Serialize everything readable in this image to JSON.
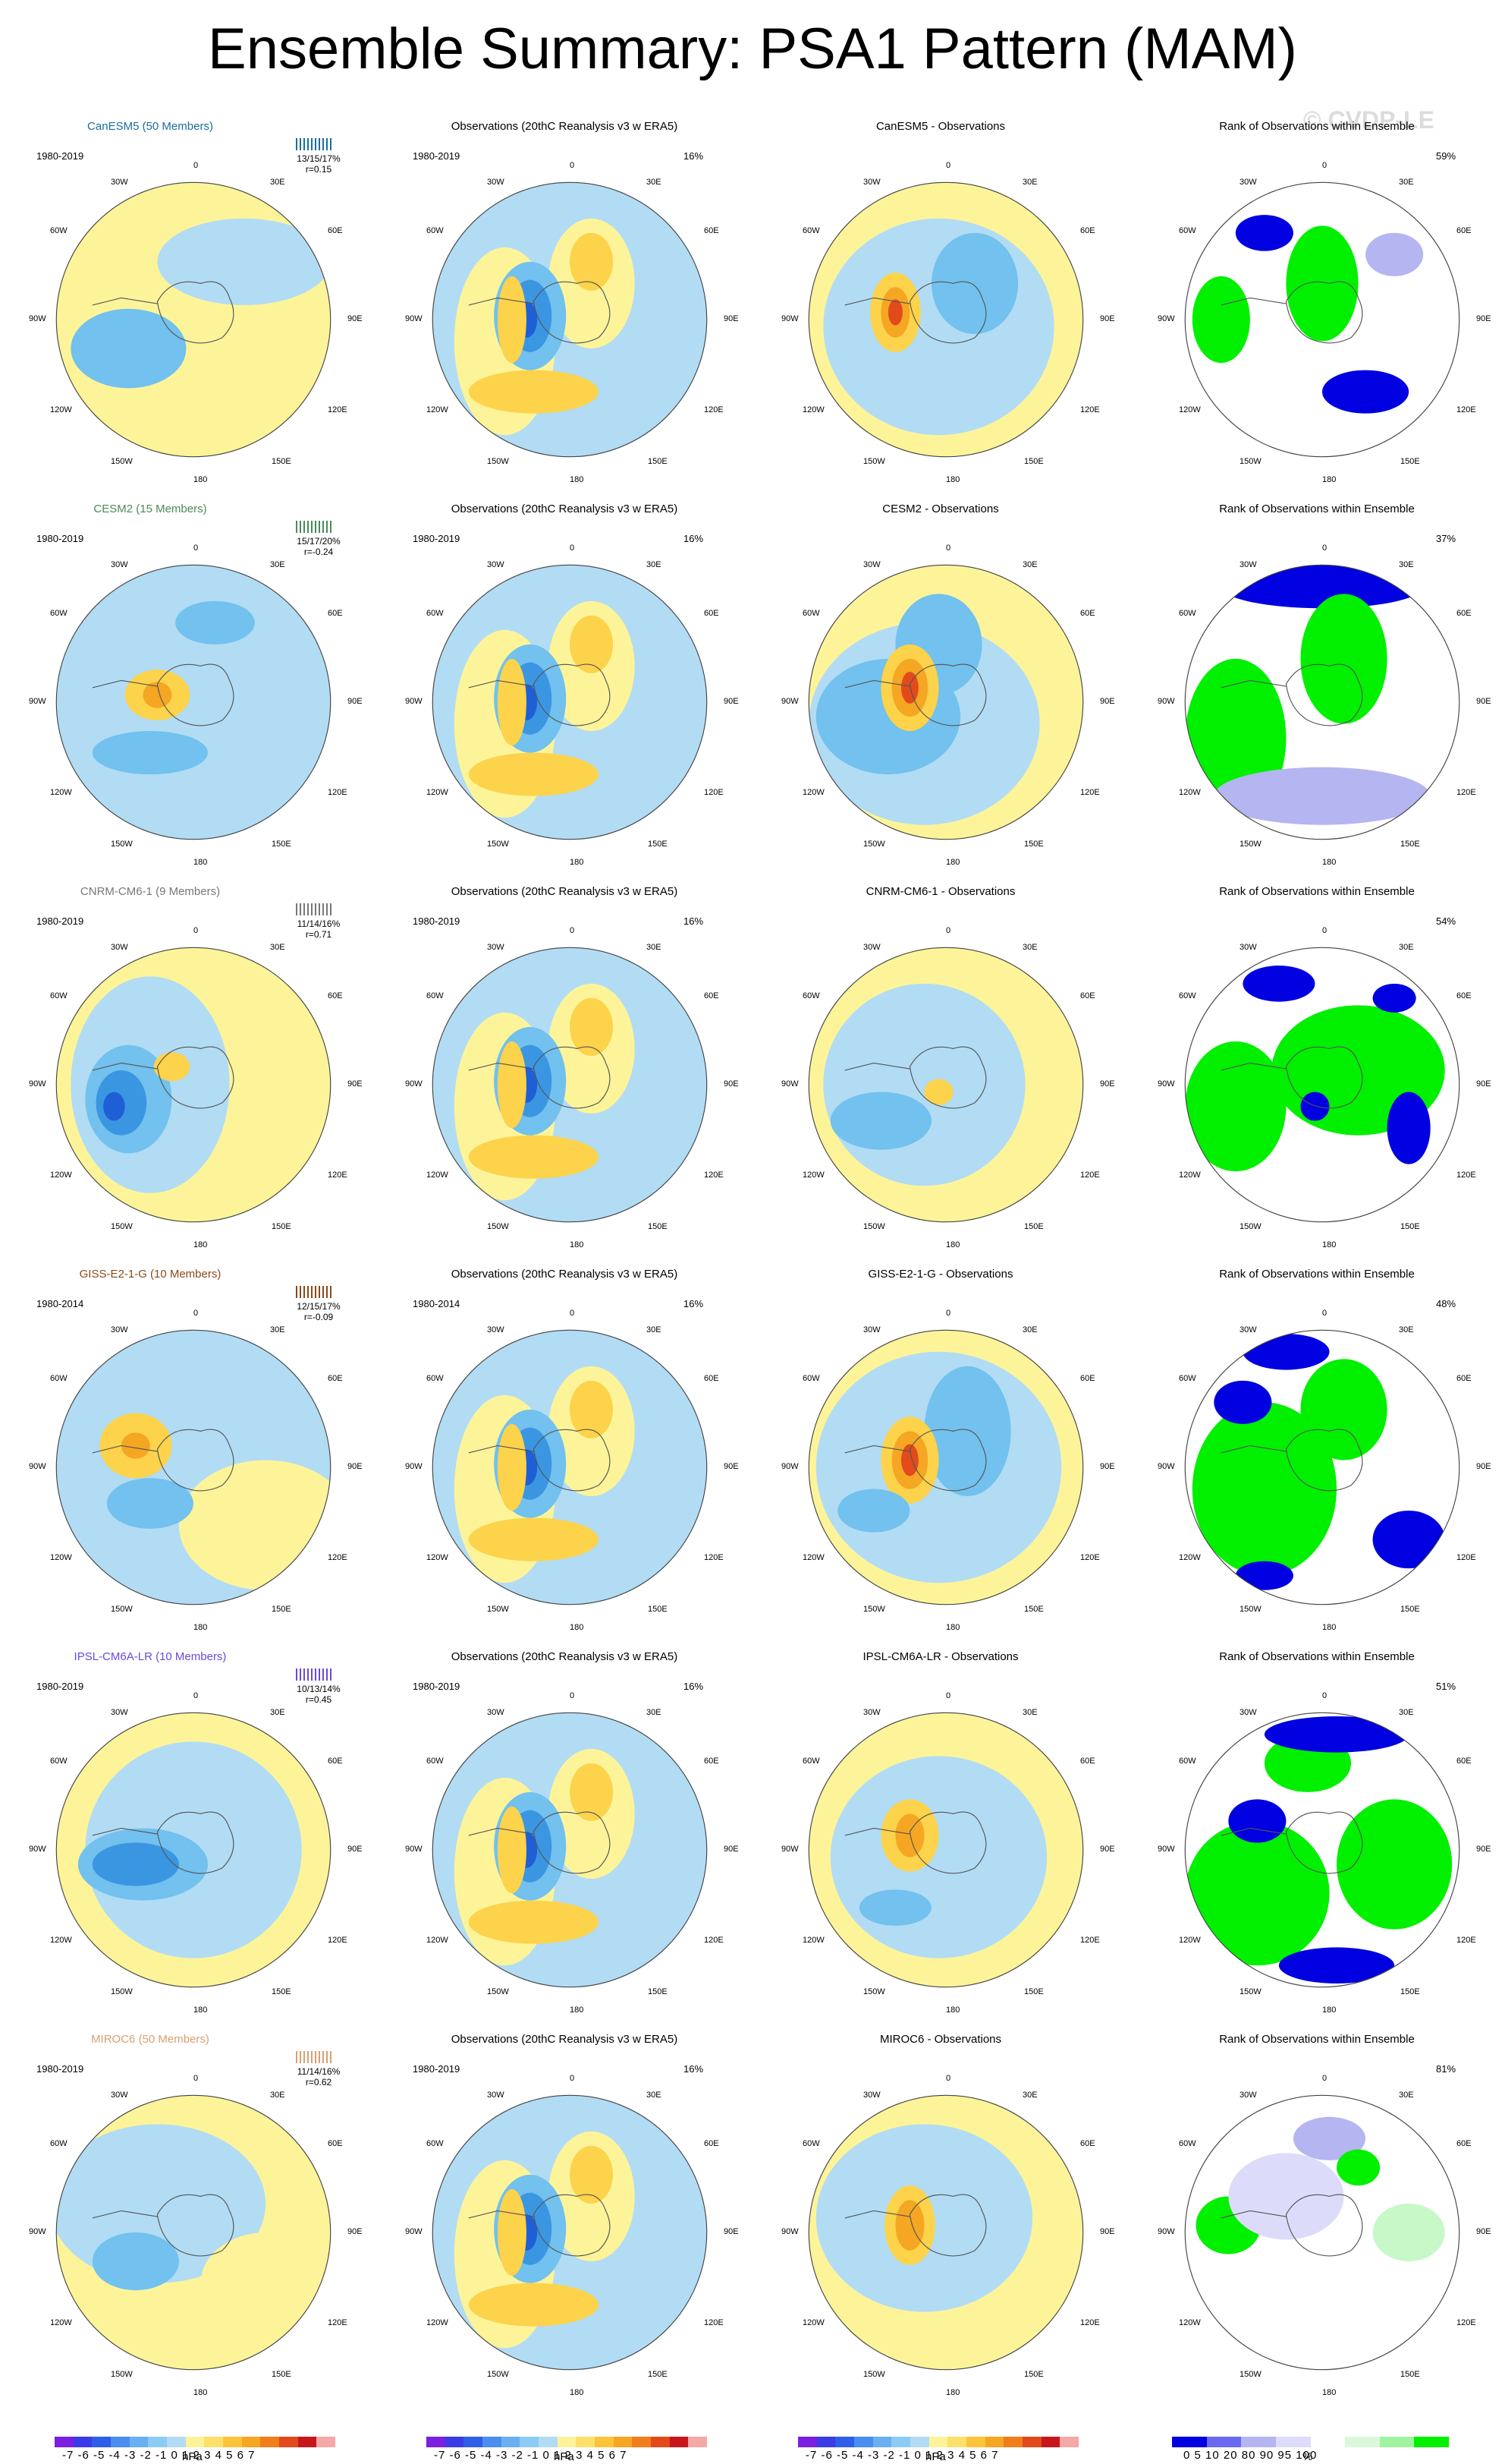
{
  "title": "Ensemble Summary: PSA1 Pattern (MAM)",
  "watermark": "© CVDP-LE",
  "obs_title": "Observations (20thC Reanalysis v3 w ERA5)",
  "rank_title": "Rank of Observations within Ensemble",
  "obs_pct": "16%",
  "lon_labels": [
    "0",
    "30E",
    "60E",
    "90E",
    "120E",
    "150E",
    "180",
    "150W",
    "120W",
    "90W",
    "60W",
    "30W"
  ],
  "colors": {
    "yellow": "#fdf49a",
    "lightblue": "#b2dcf4",
    "midblue": "#72c1ee",
    "blue": "#3b96e2",
    "darkblue": "#1f5fd6",
    "orange_light": "#fcd34a",
    "orange": "#f5a623",
    "red": "#e24a1c",
    "darkred": "#c8161d",
    "rank_blue": "#0000e0",
    "rank_lav": "#b5b5f2",
    "rank_lav2": "#dcdcfa",
    "rank_green": "#00f000",
    "rank_lightgreen": "#c8f8c8"
  },
  "rows": [
    {
      "model": "CanESM5 (50 Members)",
      "model_color": "#1a6e9e",
      "years": "1980-2019",
      "stats": "13/15/17%",
      "r": "r=0.15",
      "diff_title": "CanESM5 - Observations",
      "rank_pct": "59%"
    },
    {
      "model": "CESM2 (15 Members)",
      "model_color": "#4a8a5a",
      "years": "1980-2019",
      "stats": "15/17/20%",
      "r": "r=-0.24",
      "diff_title": "CESM2 - Observations",
      "rank_pct": "37%"
    },
    {
      "model": "CNRM-CM6-1 (9 Members)",
      "model_color": "#777777",
      "years": "1980-2019",
      "stats": "11/14/16%",
      "r": "r=0.71",
      "diff_title": "CNRM-CM6-1 - Observations",
      "rank_pct": "54%"
    },
    {
      "model": "GISS-E2-1-G (10 Members)",
      "model_color": "#8a4a1a",
      "years": "1980-2014",
      "stats": "12/15/17%",
      "r": "r=-0.09",
      "diff_title": "GISS-E2-1-G - Observations",
      "rank_pct": "48%"
    },
    {
      "model": "IPSL-CM6A-LR (10 Members)",
      "model_color": "#6a4ad8",
      "years": "1980-2019",
      "stats": "10/13/14%",
      "r": "r=0.45",
      "diff_title": "IPSL-CM6A-LR - Observations",
      "rank_pct": "51%"
    },
    {
      "model": "MIROC6 (50 Members)",
      "model_color": "#d8a070",
      "years": "1980-2019",
      "stats": "11/14/16%",
      "r": "r=0.62",
      "diff_title": "MIROC6 - Observations",
      "rank_pct": "81%"
    }
  ],
  "colorbar_hpa": {
    "labels": "-7 -6 -5 -4 -3 -2 -1 0  1  2  3  4  5  6  7",
    "units": "hPa",
    "colors": [
      "#7b1fe0",
      "#3b3be8",
      "#2f5ee8",
      "#4a8ef0",
      "#6ab0f0",
      "#8cccf4",
      "#b2dcf4",
      "#fdf49a",
      "#fde06a",
      "#fcc43a",
      "#f5a623",
      "#f07e1a",
      "#e24a1c",
      "#c8161d",
      "#f4a8a8"
    ]
  },
  "colorbar_rank": {
    "labels": "0   5  10    20    80    90  95 100",
    "units": "%",
    "colors": [
      "#0000e0",
      "#6a6af0",
      "#b5b5f2",
      "#dcdcfa",
      "#ffffff",
      "#dcf8dc",
      "#a0f4a0",
      "#00f000"
    ]
  }
}
